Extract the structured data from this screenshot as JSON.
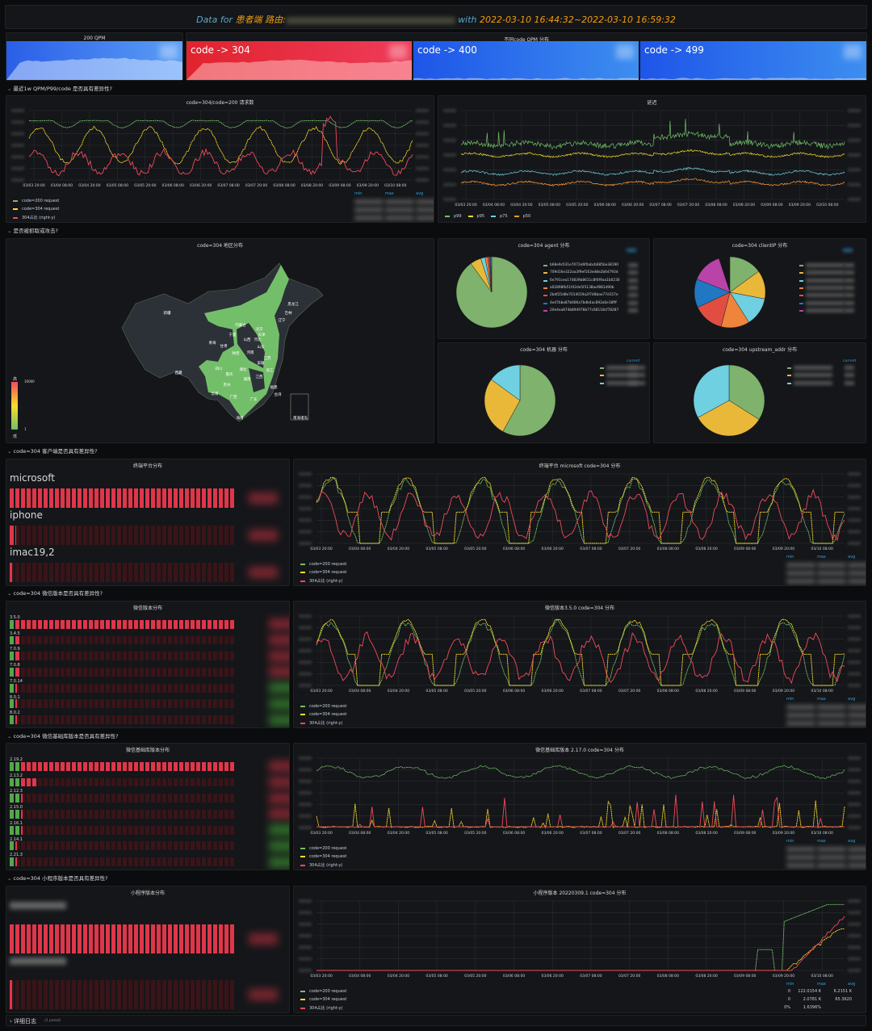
{
  "header": {
    "prefix": "Data for",
    "service": "患者端 路由:",
    "with": "with",
    "range": "2022-03-10 16:44:32~2022-03-10 16:59:32"
  },
  "stats": {
    "qpm200_title": "200 QPM",
    "dist_title": "不同code QPM 分布",
    "items": [
      {
        "label": "code -> 304",
        "color": "#e02f44"
      },
      {
        "label": "code -> 400",
        "color": "#1f60c4"
      },
      {
        "label": "code -> 499",
        "color": "#1f60c4"
      }
    ]
  },
  "rows": [
    "最近1w QPM/P99/code 是否具有差异性?",
    "是否被抓取或攻击?",
    "code=304 客户端是否具有差异性?",
    "code=304 微信版本是否具有差异性?",
    "code=304 微信基础库版本是否具有差异性?",
    "code=304 小程序版本是否具有差异性?"
  ],
  "footer": {
    "title": "详细日志",
    "count": "(1 panel)"
  },
  "x_ticks": [
    "03/03 20:00",
    "03/04 08:00",
    "03/04 20:00",
    "03/05 08:00",
    "03/05 20:00",
    "03/06 08:00",
    "03/06 20:00",
    "03/07 08:00",
    "03/07 20:00",
    "03/08 08:00",
    "03/08 20:00",
    "03/09 08:00",
    "03/09 20:00",
    "03/10 08:00"
  ],
  "req_legend": [
    "code=200 request",
    "code=304 request",
    "304占比 (right-y)"
  ],
  "legend_cols": [
    "min",
    "max",
    "avg"
  ],
  "series_colors": {
    "green": "#73bf69",
    "yellow": "#fade2a",
    "red": "#f2495c",
    "cyan": "#5794f2",
    "orange": "#ff9830"
  },
  "charts": {
    "req": {
      "title": "code=304/code=200 请求数"
    },
    "latency": {
      "title": "延迟",
      "legend": [
        "p99",
        "p95",
        "p75",
        "p50"
      ]
    },
    "platform": {
      "title": "终端平台 microsoft code=304 分布"
    },
    "wechat": {
      "title": "微信版本3.5.0 code=304 分布"
    },
    "baselib": {
      "title": "微信基础库版本 2.17.0 code=304 分布"
    },
    "app": {
      "title": "小程序版本 20220309.1 code=304 分布",
      "values": [
        [
          "0",
          "122.0154 K",
          "6.2151 K"
        ],
        [
          "0",
          "2.0781 K",
          "65.3620"
        ],
        [
          "0%",
          "1.6396%",
          ""
        ]
      ]
    }
  },
  "map": {
    "title": "code=304 地区分布",
    "legend_high": "高",
    "legend_low": "低",
    "max": "10000",
    "min": "1",
    "provinces": [
      "新疆",
      "西藏",
      "青海",
      "甘肃",
      "宁夏",
      "内蒙古",
      "北京",
      "天津",
      "辽宁",
      "吉林",
      "黑龙江",
      "河北",
      "山西",
      "山东",
      "陕西",
      "河南",
      "四川",
      "重庆",
      "湖北",
      "安徽",
      "江苏",
      "浙江",
      "湖南",
      "江西",
      "贵州",
      "云南",
      "广西",
      "广东",
      "福建",
      "海南",
      "台湾",
      "南海诸岛"
    ]
  },
  "pies": [
    {
      "title": "code=304 agent 分布",
      "values": [
        0.9,
        0.05,
        0.02,
        0.012,
        0.008,
        0.005,
        0.005
      ],
      "legend": [
        "b68e9c031e7072e6f0abcb685be38190",
        "709d16e322aa3f9ef163ed8e2b64793d",
        "6e791cea174839b8611c8f4f9aa1b0230",
        "a02898fb51f42de5f3138aef881d90b",
        "2bdf25d8e7014019a2f748bae77d157e",
        "4ed7bba87b686a7bdb4ac892a6e18fff",
        "20e4ea874b894978b77c68118cf78287"
      ]
    },
    {
      "title": "code=304 clientIP 分布",
      "values": [
        0.15,
        0.13,
        0.13,
        0.13,
        0.14,
        0.13,
        0.14
      ]
    },
    {
      "title": "code=304 机器 分布",
      "values": [
        0.58,
        0.27,
        0.15
      ],
      "legend_header": "current"
    },
    {
      "title": "code=304 upstream_addr 分布",
      "values": [
        0.34,
        0.33,
        0.33
      ],
      "legend_header": "current"
    }
  ],
  "pie_colors": [
    "#7eb26d",
    "#eab839",
    "#6ed0e0",
    "#ef843c",
    "#e24d42",
    "#1f78c1",
    "#ba43a9"
  ],
  "gauges": [
    {
      "title": "终端平台分布",
      "big": true,
      "items": [
        {
          "label": "microsoft",
          "fill": 1.0
        },
        {
          "label": "iphone",
          "fill": 0.03
        },
        {
          "label": "imac19,2",
          "fill": 0.01
        }
      ]
    },
    {
      "title": "微信版本分布",
      "items": [
        {
          "label": "3.5.0",
          "fill": 1.0,
          "green": 1
        },
        {
          "label": "3.4.5",
          "fill": 0.05,
          "green": 1
        },
        {
          "label": "7.0.9",
          "fill": 0.05,
          "green": 1
        },
        {
          "label": "7.0.8",
          "fill": 0.05,
          "green": 1
        },
        {
          "label": "7.0.14",
          "fill": 0.01,
          "green": 1
        },
        {
          "label": "8.0.1",
          "fill": 0.01,
          "green": 1
        },
        {
          "label": "8.0.2",
          "fill": 0.01,
          "green": 1
        }
      ]
    },
    {
      "title": "微信基础库版本分布",
      "items": [
        {
          "label": "2.19.2",
          "fill": 1.0,
          "green": 2
        },
        {
          "label": "2.13.2",
          "fill": 0.12,
          "green": 2
        },
        {
          "label": "2.12.3",
          "fill": 0.03,
          "green": 2
        },
        {
          "label": "2.15.0",
          "fill": 0.03,
          "green": 2
        },
        {
          "label": "2.16.1",
          "fill": 0.03,
          "green": 2
        },
        {
          "label": "2.14.1",
          "fill": 0.01,
          "green": 1
        },
        {
          "label": "2.21.3",
          "fill": 0.01,
          "green": 1
        }
      ]
    },
    {
      "title": "小程序版本分布",
      "big": true,
      "items": [
        {
          "fill": 1.0
        },
        {
          "fill": 0.01
        }
      ]
    }
  ]
}
